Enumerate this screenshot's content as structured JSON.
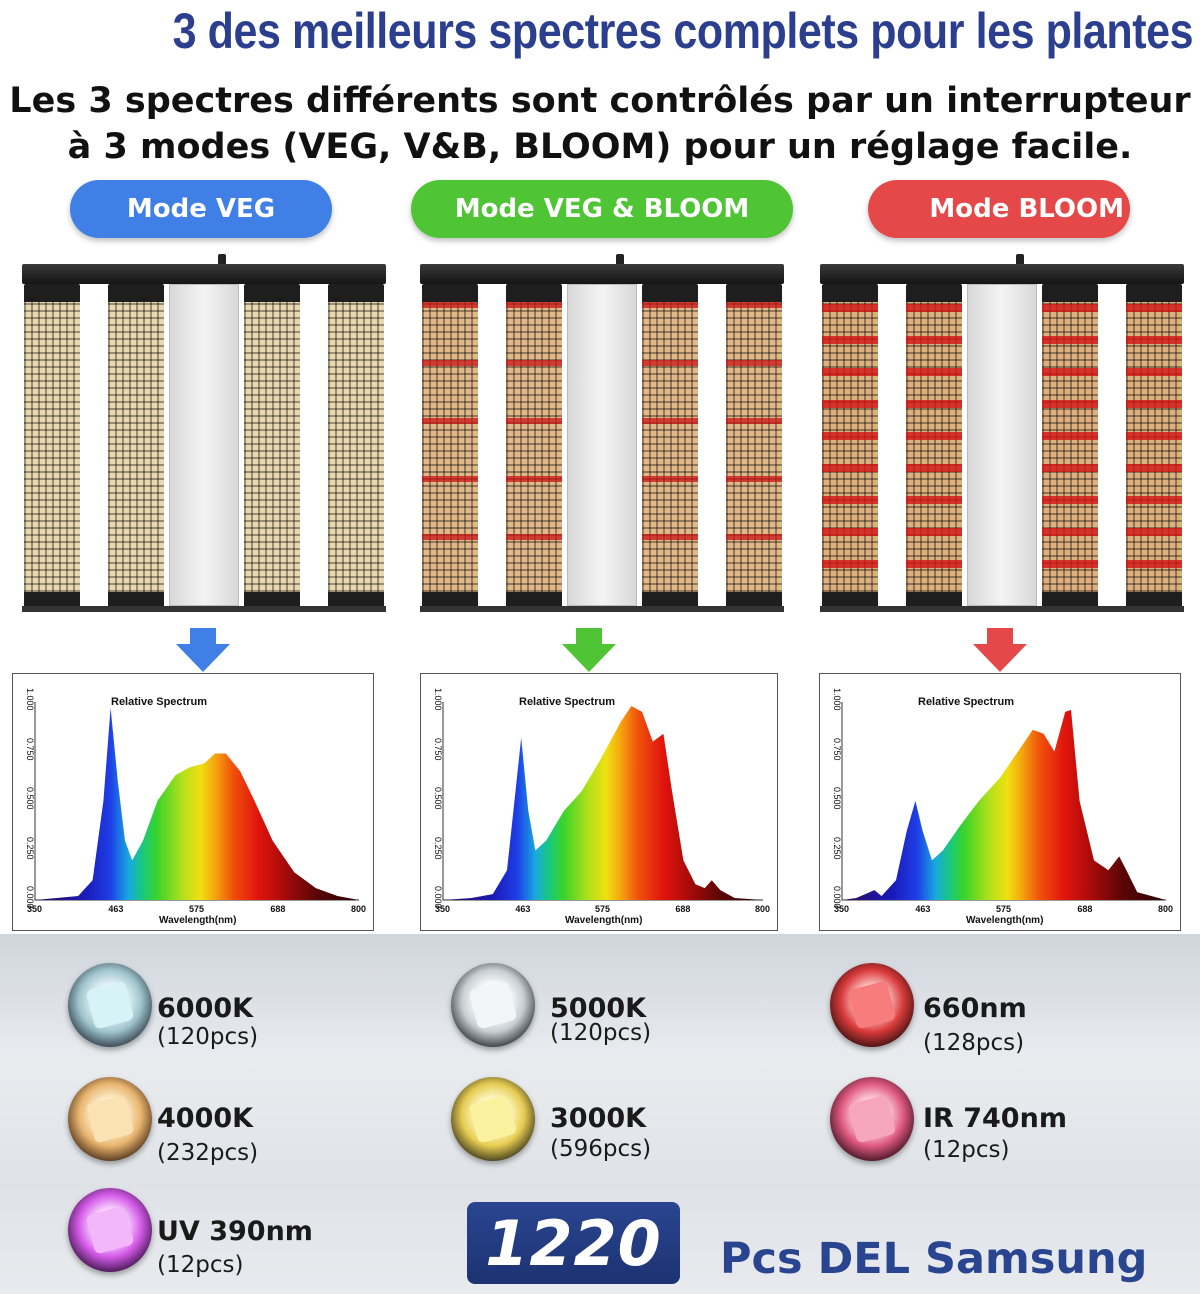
{
  "header": {
    "title": "3 des meilleurs spectres complets pour les plantes",
    "subtitle_line1": "Les 3 spectres différents sont contrôlés par un interrupteur",
    "subtitle_line2": "à 3 modes (VEG, V&B, BLOOM) pour un réglage facile."
  },
  "modes": [
    {
      "label": "Mode VEG",
      "color": "#3f7fe6"
    },
    {
      "label": "Mode VEG & BLOOM",
      "color": "#4fc435"
    },
    {
      "label": "Mode BLOOM",
      "color": "#e44848"
    }
  ],
  "spectra": [
    {
      "title": "Relative Spectrum",
      "xlabel": "Wavelength(nm)",
      "x_ticks": [
        "350",
        "463",
        "575",
        "688",
        "800"
      ],
      "y_ticks": [
        "0.000",
        "0.250",
        "0.500",
        "0.750",
        "1.000"
      ],
      "xlim": [
        350,
        800
      ],
      "ylim": [
        0,
        1
      ],
      "curve": [
        [
          350,
          0.0
        ],
        [
          380,
          0.01
        ],
        [
          410,
          0.02
        ],
        [
          430,
          0.1
        ],
        [
          445,
          0.5
        ],
        [
          455,
          0.97
        ],
        [
          465,
          0.6
        ],
        [
          475,
          0.3
        ],
        [
          485,
          0.2
        ],
        [
          500,
          0.3
        ],
        [
          520,
          0.5
        ],
        [
          545,
          0.63
        ],
        [
          565,
          0.67
        ],
        [
          585,
          0.69
        ],
        [
          600,
          0.74
        ],
        [
          615,
          0.74
        ],
        [
          635,
          0.65
        ],
        [
          655,
          0.5
        ],
        [
          680,
          0.3
        ],
        [
          710,
          0.14
        ],
        [
          740,
          0.06
        ],
        [
          770,
          0.02
        ],
        [
          800,
          0.0
        ]
      ]
    },
    {
      "title": "Relative Spectrum",
      "xlabel": "Wavelength(nm)",
      "x_ticks": [
        "350",
        "463",
        "575",
        "688",
        "800"
      ],
      "y_ticks": [
        "0.000",
        "0.250",
        "0.500",
        "0.750",
        "1.000"
      ],
      "xlim": [
        350,
        800
      ],
      "ylim": [
        0,
        1
      ],
      "curve": [
        [
          350,
          0.0
        ],
        [
          390,
          0.01
        ],
        [
          420,
          0.03
        ],
        [
          440,
          0.15
        ],
        [
          452,
          0.55
        ],
        [
          460,
          0.82
        ],
        [
          470,
          0.45
        ],
        [
          480,
          0.25
        ],
        [
          495,
          0.3
        ],
        [
          520,
          0.45
        ],
        [
          545,
          0.55
        ],
        [
          570,
          0.7
        ],
        [
          600,
          0.9
        ],
        [
          615,
          0.98
        ],
        [
          630,
          0.95
        ],
        [
          645,
          0.8
        ],
        [
          660,
          0.84
        ],
        [
          672,
          0.55
        ],
        [
          688,
          0.2
        ],
        [
          705,
          0.08
        ],
        [
          718,
          0.06
        ],
        [
          728,
          0.1
        ],
        [
          740,
          0.05
        ],
        [
          760,
          0.01
        ],
        [
          800,
          0.0
        ]
      ]
    },
    {
      "title": "Relative Spectrum",
      "xlabel": "Wavelength(nm)",
      "x_ticks": [
        "350",
        "463",
        "575",
        "688",
        "800"
      ],
      "y_ticks": [
        "0.000",
        "0.250",
        "0.500",
        "0.750",
        "1.000"
      ],
      "xlim": [
        350,
        800
      ],
      "ylim": [
        0,
        1
      ],
      "curve": [
        [
          350,
          0.0
        ],
        [
          370,
          0.01
        ],
        [
          395,
          0.05
        ],
        [
          405,
          0.02
        ],
        [
          425,
          0.1
        ],
        [
          440,
          0.35
        ],
        [
          452,
          0.5
        ],
        [
          462,
          0.35
        ],
        [
          475,
          0.2
        ],
        [
          490,
          0.25
        ],
        [
          515,
          0.38
        ],
        [
          540,
          0.5
        ],
        [
          570,
          0.62
        ],
        [
          600,
          0.78
        ],
        [
          615,
          0.86
        ],
        [
          630,
          0.84
        ],
        [
          645,
          0.75
        ],
        [
          660,
          0.95
        ],
        [
          668,
          0.96
        ],
        [
          680,
          0.5
        ],
        [
          700,
          0.2
        ],
        [
          720,
          0.15
        ],
        [
          735,
          0.22
        ],
        [
          745,
          0.15
        ],
        [
          760,
          0.04
        ],
        [
          800,
          0.0
        ]
      ]
    }
  ],
  "leds": [
    {
      "name": "6000K",
      "count": "(120pcs)",
      "icon": "white-cool-led-icon",
      "color": "#bfe6ee"
    },
    {
      "name": "4000K",
      "count": "(232pcs)",
      "icon": "neutral-white-led-icon",
      "color": "#f6d49a"
    },
    {
      "name": "UV 390nm",
      "count": "(12pcs)",
      "icon": "uv-led-icon",
      "color": "#e06ef0"
    },
    {
      "name": "5000K",
      "count": "(120pcs)",
      "icon": "daylight-led-icon",
      "color": "#e8eef0"
    },
    {
      "name": "3000K",
      "count": "(596pcs)",
      "icon": "warm-white-led-icon",
      "color": "#f7eb86"
    },
    {
      "name": "660nm",
      "count": "(128pcs)",
      "icon": "red-led-icon",
      "color": "#f06060"
    },
    {
      "name": "IR 740nm",
      "count": "(12pcs)",
      "icon": "ir-led-icon",
      "color": "#f28aa8"
    }
  ],
  "summary": {
    "count": "1220",
    "label": "Pcs DEL Samsung"
  }
}
